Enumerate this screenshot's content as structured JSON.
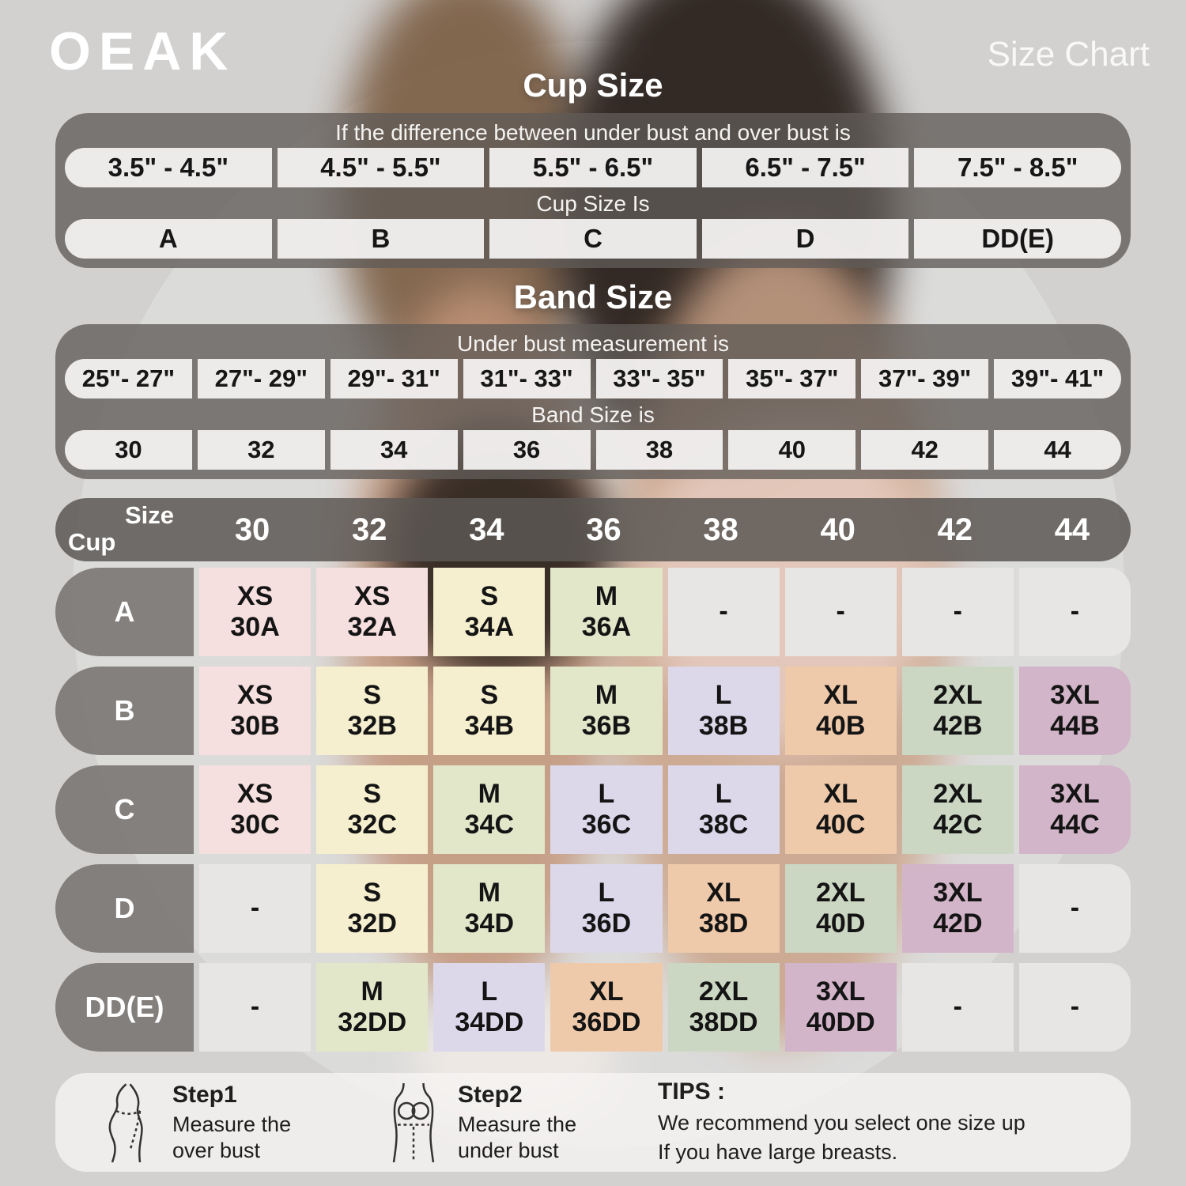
{
  "brand": "OEAK",
  "page_title": "Size Chart",
  "colors": {
    "XS": "#f6dfdf",
    "S": "#f5efcf",
    "M": "#e2e7ca",
    "L": "#dcd8ea",
    "XL": "#eecaab",
    "2XL": "#cbd7c3",
    "3XL": "#d2b5c8",
    "none": "#e8e6e5"
  },
  "cup_section": {
    "title": "Cup Size",
    "header": "If the  difference between under bust and over bust is",
    "ranges": [
      "3.5\" -  4.5\"",
      "4.5\" -  5.5\"",
      "5.5\" -  6.5\"",
      "6.5\" -  7.5\"",
      "7.5\" -  8.5\""
    ],
    "subheader": "Cup Size Is",
    "values": [
      "A",
      "B",
      "C",
      "D",
      "DD(E)"
    ]
  },
  "band_section": {
    "title": "Band Size",
    "header": "Under bust measurement is",
    "ranges": [
      "25\"- 27\"",
      "27\"- 29\"",
      "29\"- 31\"",
      "31\"- 33\"",
      "33\"- 35\"",
      "35\"- 37\"",
      "37\"- 39\"",
      "39\"- 41\""
    ],
    "subheader": "Band Size is",
    "values": [
      "30",
      "32",
      "34",
      "36",
      "38",
      "40",
      "42",
      "44"
    ]
  },
  "matrix": {
    "corner_top": "Size",
    "corner_bottom": "Cup",
    "empty": "-",
    "columns": [
      "30",
      "32",
      "34",
      "36",
      "38",
      "40",
      "42",
      "44"
    ],
    "rows": [
      {
        "label": "A",
        "cells": [
          {
            "size": "XS",
            "code": "30A"
          },
          {
            "size": "XS",
            "code": "32A"
          },
          {
            "size": "S",
            "code": "34A"
          },
          {
            "size": "M",
            "code": "36A"
          },
          null,
          null,
          null,
          null
        ]
      },
      {
        "label": "B",
        "cells": [
          {
            "size": "XS",
            "code": "30B"
          },
          {
            "size": "S",
            "code": "32B"
          },
          {
            "size": "S",
            "code": "34B"
          },
          {
            "size": "M",
            "code": "36B"
          },
          {
            "size": "L",
            "code": "38B"
          },
          {
            "size": "XL",
            "code": "40B"
          },
          {
            "size": "2XL",
            "code": "42B"
          },
          {
            "size": "3XL",
            "code": "44B"
          }
        ]
      },
      {
        "label": "C",
        "cells": [
          {
            "size": "XS",
            "code": "30C"
          },
          {
            "size": "S",
            "code": "32C"
          },
          {
            "size": "M",
            "code": "34C"
          },
          {
            "size": "L",
            "code": "36C"
          },
          {
            "size": "L",
            "code": "38C"
          },
          {
            "size": "XL",
            "code": "40C"
          },
          {
            "size": "2XL",
            "code": "42C"
          },
          {
            "size": "3XL",
            "code": "44C"
          }
        ]
      },
      {
        "label": "D",
        "cells": [
          null,
          {
            "size": "S",
            "code": "32D"
          },
          {
            "size": "M",
            "code": "34D"
          },
          {
            "size": "L",
            "code": "36D"
          },
          {
            "size": "XL",
            "code": "38D"
          },
          {
            "size": "2XL",
            "code": "40D"
          },
          {
            "size": "3XL",
            "code": "42D"
          },
          null
        ]
      },
      {
        "label": "DD(E)",
        "cells": [
          null,
          {
            "size": "M",
            "code": "32DD"
          },
          {
            "size": "L",
            "code": "34DD"
          },
          {
            "size": "XL",
            "code": "36DD"
          },
          {
            "size": "2XL",
            "code": "38DD"
          },
          {
            "size": "3XL",
            "code": "40DD"
          },
          null,
          null
        ]
      }
    ]
  },
  "footer": {
    "step1_title": "Step1",
    "step1_text": "Measure the over bust",
    "step2_title": "Step2",
    "step2_text": "Measure the under bust",
    "tips_title": "TIPS :",
    "tips_line1": "We recommend you select one size up",
    "tips_line2": "If you have large breasts."
  },
  "chart_data": [
    {
      "type": "table",
      "title": "Cup Size",
      "note": "If the difference between under bust and over bust is -> Cup Size Is",
      "columns": [
        "3.5\" - 4.5\"",
        "4.5\" - 5.5\"",
        "5.5\" - 6.5\"",
        "6.5\" - 7.5\"",
        "7.5\" - 8.5\""
      ],
      "rows": [
        [
          "A",
          "B",
          "C",
          "D",
          "DD(E)"
        ]
      ]
    },
    {
      "type": "table",
      "title": "Band Size",
      "note": "Under bust measurement is -> Band Size is",
      "columns": [
        "25\"- 27\"",
        "27\"- 29\"",
        "29\"- 31\"",
        "31\"- 33\"",
        "33\"- 35\"",
        "35\"- 37\"",
        "37\"- 39\"",
        "39\"- 41\""
      ],
      "rows": [
        [
          "30",
          "32",
          "34",
          "36",
          "38",
          "40",
          "42",
          "44"
        ]
      ]
    },
    {
      "type": "table",
      "title": "Cup x Band size matrix",
      "columns": [
        "Cup \\ Size",
        "30",
        "32",
        "34",
        "36",
        "38",
        "40",
        "42",
        "44"
      ],
      "rows": [
        [
          "A",
          "XS 30A",
          "XS 32A",
          "S 34A",
          "M 36A",
          "-",
          "-",
          "-",
          "-"
        ],
        [
          "B",
          "XS 30B",
          "S 32B",
          "S 34B",
          "M 36B",
          "L 38B",
          "XL 40B",
          "2XL 42B",
          "3XL 44B"
        ],
        [
          "C",
          "XS 30C",
          "S 32C",
          "M 34C",
          "L 36C",
          "L 38C",
          "XL 40C",
          "2XL 42C",
          "3XL 44C"
        ],
        [
          "D",
          "-",
          "S 32D",
          "M 34D",
          "L 36D",
          "XL 38D",
          "2XL 40D",
          "3XL 42D",
          "-"
        ],
        [
          "DD(E)",
          "-",
          "M 32DD",
          "L 34DD",
          "XL 36DD",
          "2XL 38DD",
          "3XL 40DD",
          "-",
          "-"
        ]
      ]
    }
  ]
}
